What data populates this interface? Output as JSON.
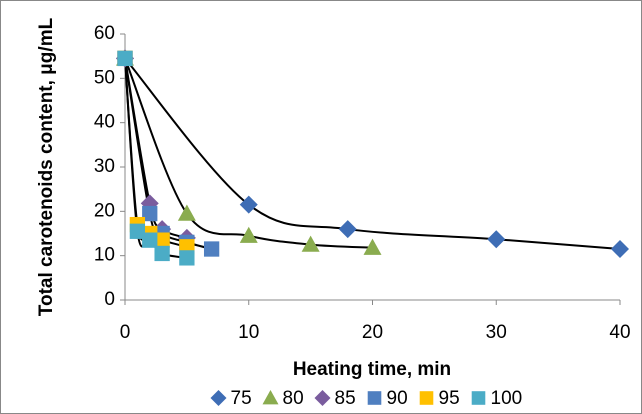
{
  "chart_data": {
    "type": "scatter",
    "x_label": "Heating time, min",
    "y_label": "Total carotenoids content, μg/mL",
    "xlim": [
      0,
      40
    ],
    "xticks": [
      0,
      10,
      20,
      30,
      40
    ],
    "ylim": [
      0,
      60
    ],
    "yticks": [
      0,
      10,
      20,
      30,
      40,
      50,
      60
    ],
    "grid": false,
    "trendline": true,
    "legend": "bottom",
    "series": [
      {
        "name": "75",
        "color": "#3e6db5",
        "marker": "diamond",
        "x": [
          0,
          10,
          18,
          30,
          40
        ],
        "values": [
          54.5,
          21.5,
          16,
          13.7,
          11.5
        ]
      },
      {
        "name": "80",
        "color": "#8aac4f",
        "marker": "triangle",
        "x": [
          0,
          5,
          10,
          15,
          20
        ],
        "values": [
          54.5,
          19.5,
          14.5,
          12.5,
          11.8
        ]
      },
      {
        "name": "85",
        "color": "#7a5c9e",
        "marker": "diamond",
        "x": [
          0,
          2,
          3,
          5
        ],
        "values": [
          54.5,
          21.8,
          16,
          14
        ]
      },
      {
        "name": "90",
        "color": "#4f7fc0",
        "marker": "square",
        "x": [
          0,
          2,
          3,
          5,
          7
        ],
        "values": [
          54.5,
          19.5,
          15,
          13,
          11.5
        ]
      },
      {
        "name": "95",
        "color": "#ffc000",
        "marker": "square",
        "x": [
          0,
          1,
          2,
          3,
          5
        ],
        "values": [
          54.5,
          17,
          15,
          13.5,
          12
        ]
      },
      {
        "name": "100",
        "color": "#4bacc6",
        "marker": "square",
        "x": [
          0,
          1,
          2,
          3,
          5
        ],
        "values": [
          54.5,
          15.5,
          13.5,
          10.5,
          9.5
        ]
      }
    ]
  }
}
